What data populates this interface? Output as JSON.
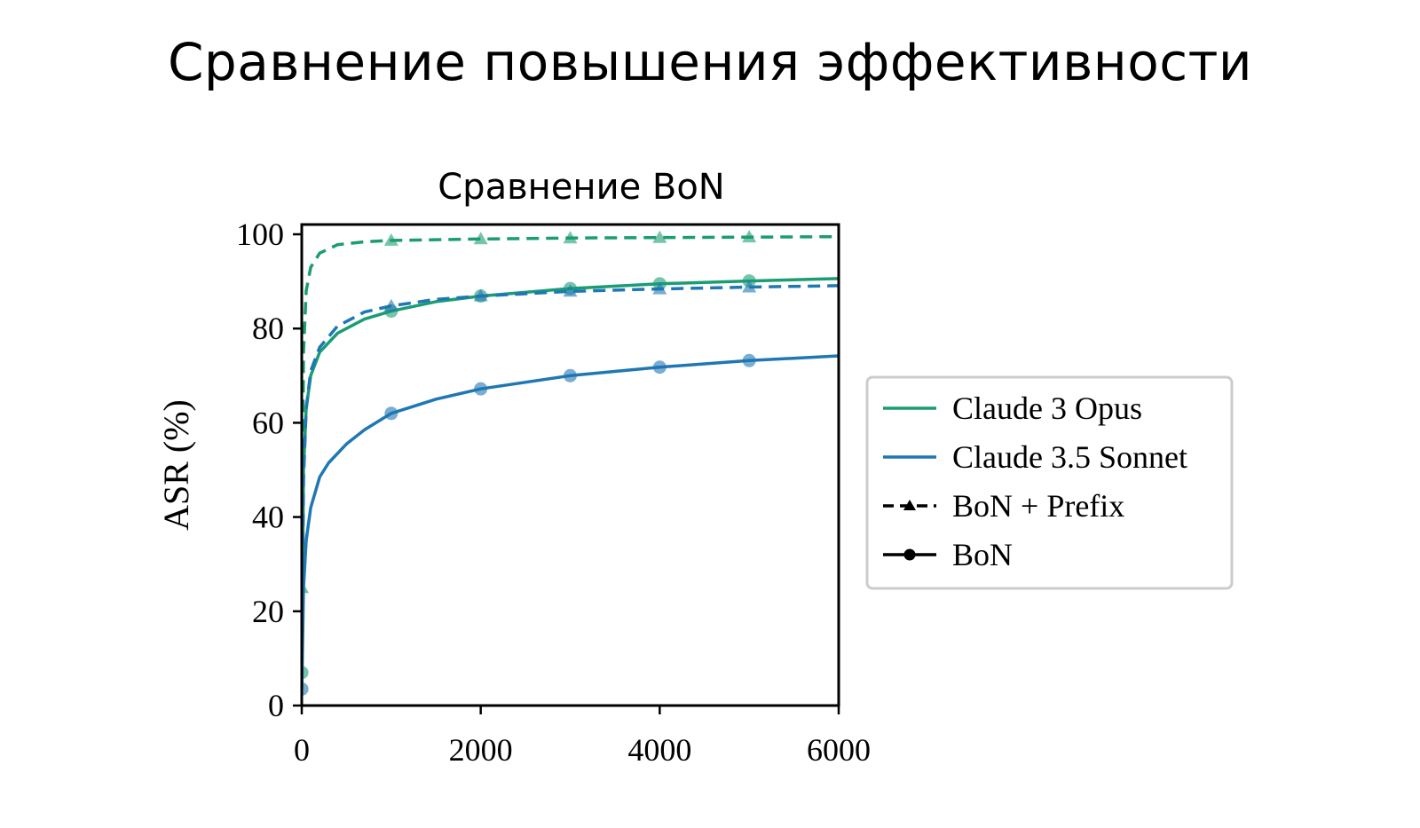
{
  "slide": {
    "title": "Сравнение повышения эффективности"
  },
  "chart_data": {
    "type": "line",
    "title": "Сравнение BoN",
    "xlabel": "",
    "ylabel": "ASR (%)",
    "xlim": [
      0,
      6000
    ],
    "ylim": [
      0,
      100
    ],
    "xticks": [
      0,
      2000,
      4000,
      6000
    ],
    "yticks": [
      0,
      20,
      40,
      60,
      80,
      100
    ],
    "grid": false,
    "legend_position": "right",
    "legend": [
      {
        "label": "Claude 3 Opus",
        "color": "#1a9c74",
        "style": "solid",
        "marker": "none"
      },
      {
        "label": "Claude 3.5 Sonnet",
        "color": "#1f77b4",
        "style": "solid",
        "marker": "none"
      },
      {
        "label": "BoN + Prefix",
        "color": "#000000",
        "style": "dashed",
        "marker": "triangle"
      },
      {
        "label": "BoN",
        "color": "#000000",
        "style": "solid",
        "marker": "circle"
      }
    ],
    "series": [
      {
        "model": "Claude 3 Opus",
        "method": "BoN + Prefix",
        "color": "#1a9c74",
        "style": "dashed",
        "marker": "triangle",
        "x": [
          1,
          20,
          50,
          100,
          200,
          400,
          700,
          1000,
          2000,
          3000,
          4000,
          5000,
          6000
        ],
        "y": [
          25,
          75,
          88,
          93,
          96,
          97.8,
          98.4,
          98.7,
          99,
          99.2,
          99.3,
          99.4,
          99.5
        ],
        "markers_x": [
          1,
          1000,
          2000,
          3000,
          4000,
          5000
        ],
        "markers_y": [
          25,
          98.7,
          99,
          99.2,
          99.3,
          99.4
        ]
      },
      {
        "model": "Claude 3 Opus",
        "method": "BoN",
        "color": "#1a9c74",
        "style": "solid",
        "marker": "circle",
        "x": [
          1,
          20,
          50,
          100,
          200,
          400,
          700,
          1000,
          1500,
          2000,
          3000,
          4000,
          5000,
          6000
        ],
        "y": [
          7,
          50,
          63,
          70,
          75,
          79,
          82,
          83.7,
          85.7,
          86.9,
          88.5,
          89.5,
          90.1,
          90.6
        ],
        "markers_x": [
          1,
          1000,
          2000,
          3000,
          4000,
          5000
        ],
        "markers_y": [
          7,
          83.7,
          86.9,
          88.5,
          89.5,
          90.1
        ]
      },
      {
        "model": "Claude 3.5 Sonnet",
        "method": "BoN + Prefix",
        "color": "#1f77b4",
        "style": "dashed",
        "marker": "triangle",
        "x": [
          1,
          20,
          50,
          100,
          200,
          400,
          700,
          1000,
          1500,
          2000,
          3000,
          4000,
          5000,
          6000
        ],
        "y": [
          5,
          48,
          63,
          71,
          76,
          80.5,
          83.5,
          84.8,
          86.2,
          86.9,
          87.9,
          88.4,
          88.8,
          89.1
        ],
        "markers_x": [
          1000,
          2000,
          3000,
          4000,
          5000
        ],
        "markers_y": [
          84.8,
          86.9,
          87.9,
          88.4,
          88.8
        ]
      },
      {
        "model": "Claude 3.5 Sonnet",
        "method": "BoN",
        "color": "#1f77b4",
        "style": "solid",
        "marker": "circle",
        "x": [
          1,
          20,
          50,
          100,
          200,
          300,
          500,
          700,
          1000,
          1500,
          2000,
          3000,
          4000,
          5000,
          6000
        ],
        "y": [
          3.5,
          25,
          35,
          42,
          48.5,
          51.5,
          55.5,
          58.5,
          62,
          65,
          67.2,
          70,
          71.8,
          73.2,
          74.2
        ],
        "markers_x": [
          1,
          1000,
          2000,
          3000,
          4000,
          5000
        ],
        "markers_y": [
          3.5,
          62,
          67.2,
          70,
          71.8,
          73.2
        ]
      }
    ]
  }
}
